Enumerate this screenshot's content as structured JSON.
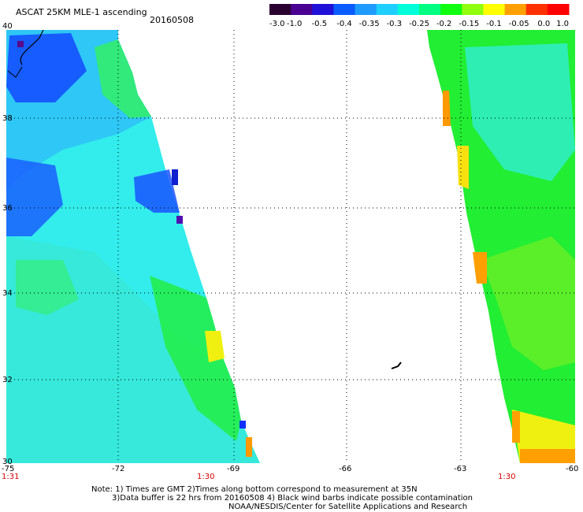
{
  "header": {
    "title": "ASCAT 25KM MLE-1 ascending",
    "date": "20160508"
  },
  "colorbar": {
    "labels": [
      "-3.0",
      "-1.0",
      "-0.5",
      "-0.4",
      "-0.35",
      "-0.3",
      "-0.25",
      "-0.2",
      "-0.15",
      "-0.1",
      "-0.05",
      "0.0",
      "1.0"
    ],
    "colors": [
      "#2a0030",
      "#4a0090",
      "#1f10d8",
      "#0a5cff",
      "#1f9bff",
      "#1fd0ff",
      "#00ffd8",
      "#00ff80",
      "#10ff10",
      "#90ff10",
      "#ffff00",
      "#ffa000",
      "#ff3000",
      "#ff0000"
    ]
  },
  "axes": {
    "lat_labels": [
      "40",
      "38",
      "36",
      "34",
      "32",
      "30"
    ],
    "lon_labels": [
      "-75",
      "-72",
      "-69",
      "-66",
      "-63",
      "-60"
    ],
    "time_labels": [
      "1:31",
      "1:30",
      "1:30"
    ]
  },
  "notes": [
    "Note: 1) Times are GMT 2)Times along bottom correspond to measurement at 35N",
    "3)Data buffer is 22 hrs from 20160508 4) Black wind barbs indicate possible contamination",
    "NOAA/NESDIS/Center for Satellite Applications and Research"
  ]
}
